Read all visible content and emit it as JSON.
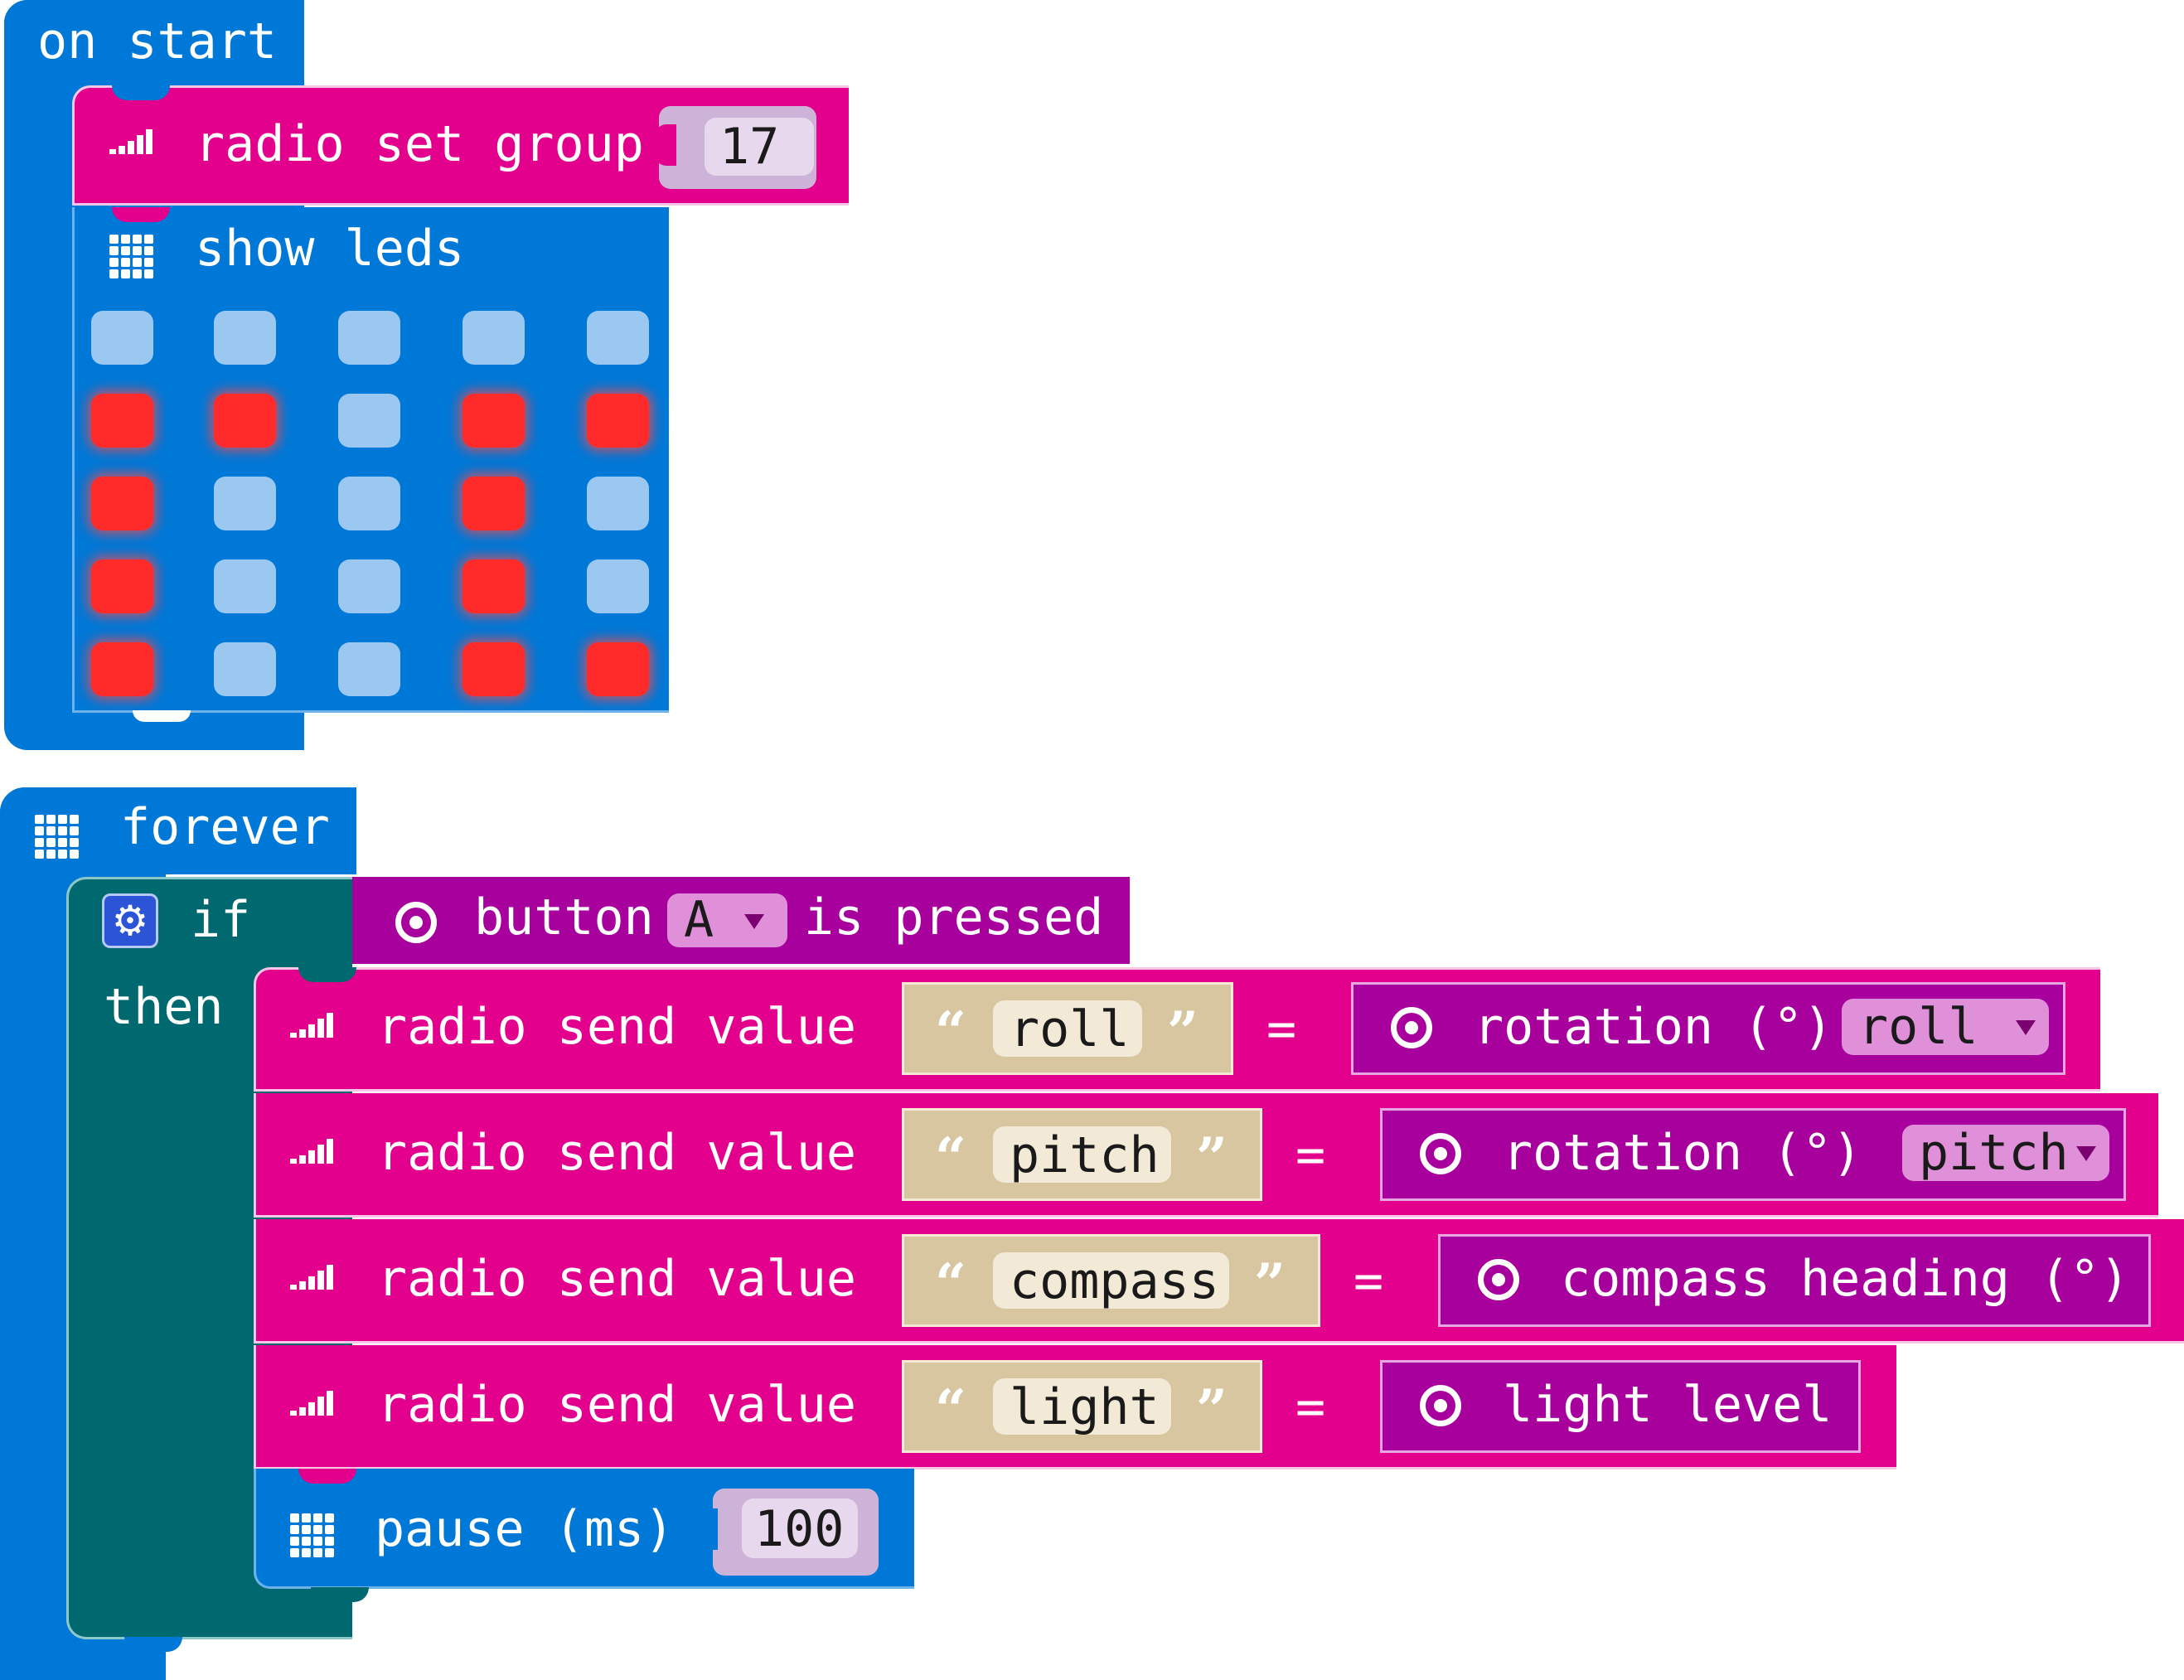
{
  "on_start": {
    "label": "on start",
    "radio_set_group": {
      "label": "radio set group",
      "value": "17"
    },
    "show_leds": {
      "label": "show leds",
      "grid": [
        [
          0,
          0,
          0,
          0,
          0
        ],
        [
          1,
          1,
          0,
          1,
          1
        ],
        [
          1,
          0,
          0,
          1,
          0
        ],
        [
          1,
          0,
          0,
          1,
          0
        ],
        [
          1,
          0,
          0,
          1,
          1
        ]
      ]
    }
  },
  "forever": {
    "label": "forever",
    "if": {
      "if_label": "if",
      "then_label": "then",
      "condition": {
        "button_label": "button",
        "button_value": "A",
        "suffix": "is pressed"
      }
    },
    "sends": [
      {
        "label": "radio send value",
        "name": "roll",
        "equals": "=",
        "sensor": "rotation (°)",
        "dropdown": "roll"
      },
      {
        "label": "radio send value",
        "name": "pitch",
        "equals": "=",
        "sensor": "rotation (°)",
        "dropdown": "pitch"
      },
      {
        "label": "radio send value",
        "name": "compass",
        "equals": "=",
        "sensor": "compass heading (°)",
        "dropdown": ""
      },
      {
        "label": "radio send value",
        "name": "light",
        "equals": "=",
        "sensor": "light level",
        "dropdown": ""
      }
    ],
    "pause": {
      "label": "pause (ms)",
      "value": "100"
    }
  },
  "icons": {
    "radio": "signal-bars-icon",
    "basic": "led-grid-icon",
    "input": "target-icon",
    "gear": "gear-icon",
    "dropdown": "dropdown-arrow-icon"
  },
  "colors": {
    "basic_blue": "#0078d7",
    "radio_pink": "#e3008c",
    "input_purple": "#a8009d",
    "logic_teal": "#006970",
    "text_tan": "#d7c6a0",
    "led_on": "#ff2a2a",
    "led_off": "#9ac8f0"
  }
}
